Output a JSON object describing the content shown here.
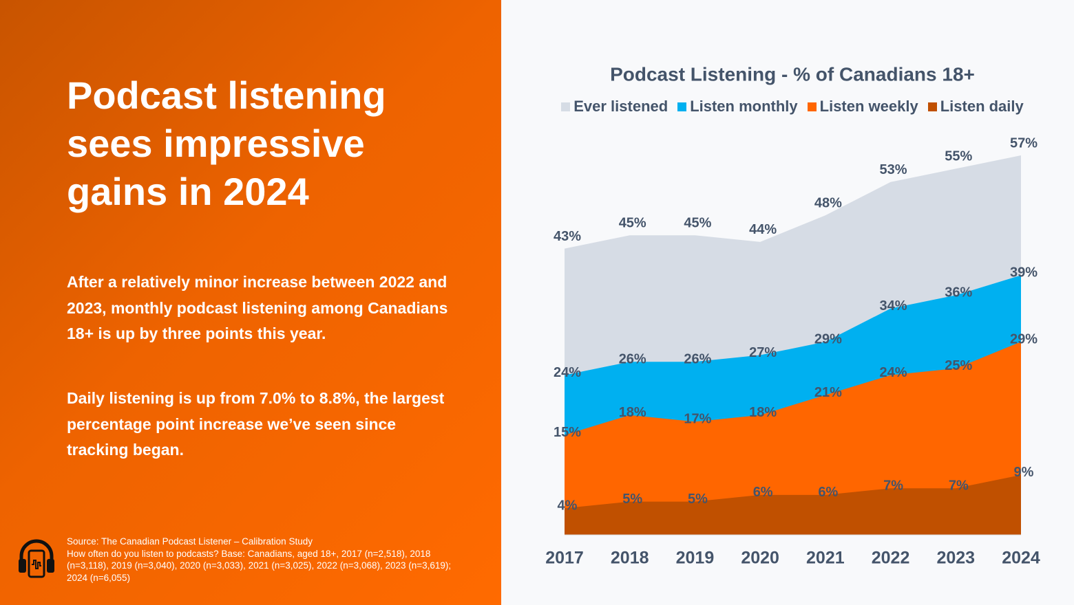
{
  "panel": {
    "headline": "Podcast listening sees impressive gains in 2024",
    "paragraphs": [
      "After a relatively minor increase between 2022 and 2023, monthly podcast listening among Canadians 18+ is up by three points this year.",
      "Daily listening is up from 7.0% to 8.8%, the largest percentage point increase we’ve seen since tracking began."
    ],
    "source": "Source: The Canadian Podcast Listener – Calibration Study",
    "note": "How often do you listen to podcasts? Base: Canadians, aged 18+, 2017 (n=2,518), 2018 (n=3,118), 2019 (n=3,040), 2020 (n=3,033), 2021 (n=3,025), 2022 (n=3,068), 2023 (n=3,619); 2024 (n=6,055)"
  },
  "chart_data": {
    "type": "area",
    "title": "Podcast Listening - % of Canadians 18+",
    "categories": [
      "2017",
      "2018",
      "2019",
      "2020",
      "2021",
      "2022",
      "2023",
      "2024"
    ],
    "ylim": [
      0,
      60
    ],
    "legend": "top",
    "series": [
      {
        "name": "Ever listened",
        "color": "#d6dce5",
        "values": [
          43,
          45,
          45,
          44,
          48,
          53,
          55,
          57
        ],
        "value_labels": [
          "43%",
          "45%",
          "45%",
          "44%",
          "48%",
          "53%",
          "55%",
          "57%"
        ]
      },
      {
        "name": "Listen monthly",
        "color": "#00b0f0",
        "values": [
          24,
          26,
          26,
          27,
          29,
          34,
          36,
          39
        ],
        "value_labels": [
          "24%",
          "26%",
          "26%",
          "27%",
          "29%",
          "34%",
          "36%",
          "39%"
        ]
      },
      {
        "name": "Listen weekly",
        "color": "#ff6600",
        "values": [
          15,
          18,
          17,
          18,
          21,
          24,
          25,
          29
        ],
        "value_labels": [
          "15%",
          "18%",
          "17%",
          "18%",
          "21%",
          "24%",
          "25%",
          "29%"
        ]
      },
      {
        "name": "Listen daily",
        "color": "#c05000",
        "values": [
          4,
          5,
          5,
          6,
          6,
          7,
          7,
          9
        ],
        "value_labels": [
          "4%",
          "5%",
          "5%",
          "6%",
          "6%",
          "7%",
          "7%",
          "9%"
        ]
      }
    ]
  }
}
